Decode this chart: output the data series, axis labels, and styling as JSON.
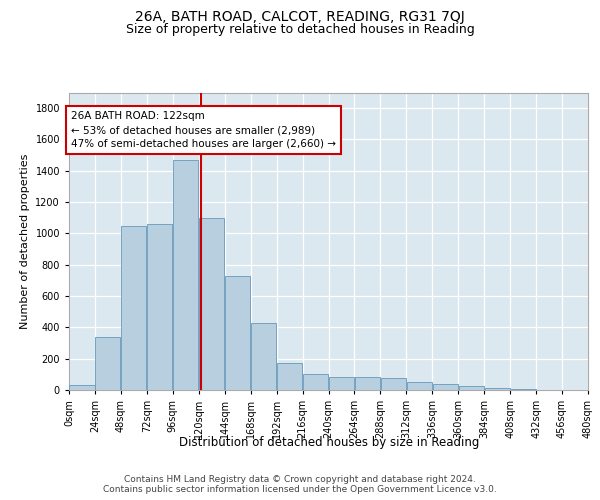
{
  "title": "26A, BATH ROAD, CALCOT, READING, RG31 7QJ",
  "subtitle": "Size of property relative to detached houses in Reading",
  "xlabel": "Distribution of detached houses by size in Reading",
  "ylabel": "Number of detached properties",
  "footer_line1": "Contains HM Land Registry data © Crown copyright and database right 2024.",
  "footer_line2": "Contains public sector information licensed under the Open Government Licence v3.0.",
  "bin_edges": [
    0,
    24,
    48,
    72,
    96,
    120,
    144,
    168,
    192,
    216,
    240,
    264,
    288,
    312,
    336,
    360,
    384,
    408,
    432,
    456,
    480
  ],
  "bar_heights": [
    30,
    340,
    1050,
    1060,
    1470,
    1100,
    730,
    430,
    170,
    105,
    85,
    80,
    75,
    50,
    40,
    25,
    15,
    5,
    0,
    0
  ],
  "bar_color": "#b8cfe0",
  "bar_edge_color": "#6699bb",
  "vline_color": "#cc0000",
  "vline_x": 122,
  "annotation_text": "26A BATH ROAD: 122sqm\n← 53% of detached houses are smaller (2,989)\n47% of semi-detached houses are larger (2,660) →",
  "box_edge_color": "#cc0000",
  "ylim": [
    0,
    1900
  ],
  "yticks": [
    0,
    200,
    400,
    600,
    800,
    1000,
    1200,
    1400,
    1600,
    1800
  ],
  "fig_bg_color": "#ffffff",
  "plot_bg_color": "#dce8f0",
  "grid_color": "#ffffff",
  "title_fontsize": 10,
  "subtitle_fontsize": 9,
  "tick_fontsize": 7,
  "ylabel_fontsize": 8,
  "xlabel_fontsize": 8.5,
  "annotation_fontsize": 7.5,
  "footer_fontsize": 6.5
}
